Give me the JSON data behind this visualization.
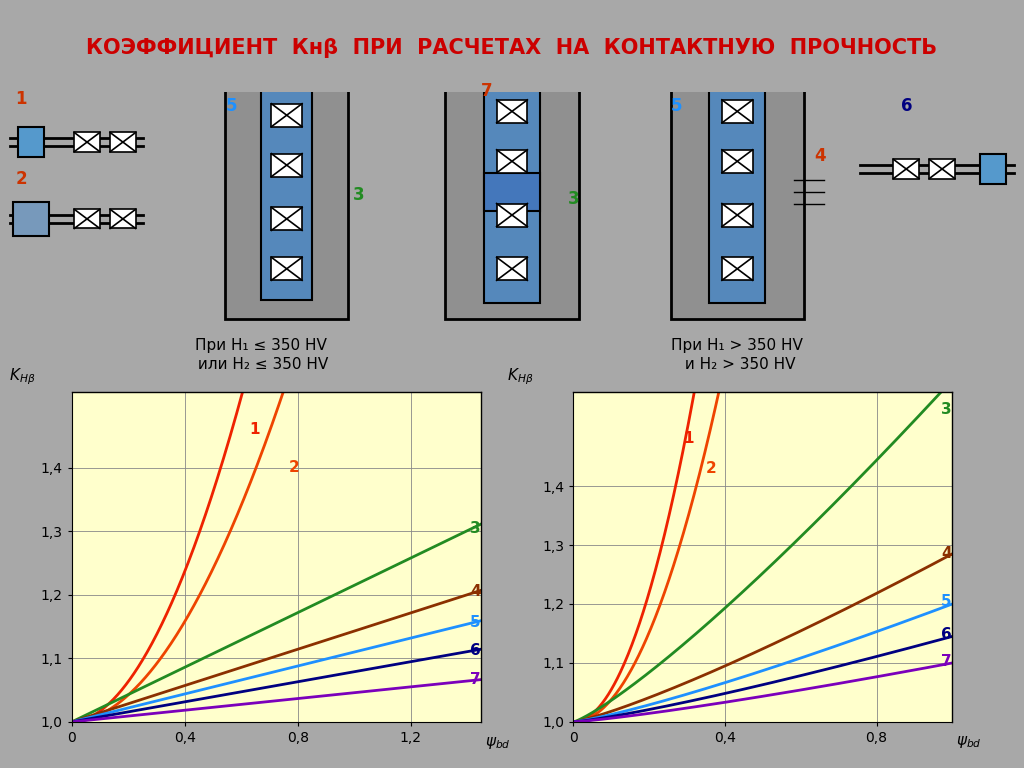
{
  "title": "КОЭФФИЦИЕНТ  Кнβ  ПРИ  РАСЧЕТАХ  НА  КОНТАКТНУЮ  ПРОЧНОСТЬ",
  "title_color": "#CC0000",
  "bg_color": "#A8A8A8",
  "white_bg": "#FFFFFF",
  "chart_bg": "#FFFFCC",
  "subtitle_left": "При H₁ ≤ 350 HV\n или H₂ ≤ 350 HV",
  "subtitle_right": "При H₁ > 350 HV\n и H₂ > 350 HV",
  "left_xtick_labels": [
    "0",
    "0,4",
    "0,8",
    "1,2"
  ],
  "right_xtick_labels": [
    "0",
    "0,4",
    "0,8"
  ],
  "ytick_labels": [
    "1,0",
    "1,1",
    "1,2",
    "1,3",
    "1,4"
  ],
  "left_xticks": [
    0,
    0.4,
    0.8,
    1.2
  ],
  "right_xticks": [
    0,
    0.4,
    0.8
  ],
  "yticks": [
    1.0,
    1.1,
    1.2,
    1.3,
    1.4
  ],
  "left_xlim": [
    0,
    1.45
  ],
  "left_ylim": [
    1.0,
    1.52
  ],
  "right_xlim": [
    0,
    1.0
  ],
  "right_ylim": [
    1.0,
    1.56
  ],
  "curve_colors": {
    "1": "#EE2200",
    "2": "#EE4400",
    "3": "#228B22",
    "4": "#8B3000",
    "5": "#1E90FF",
    "6": "#000080",
    "7": "#7B00BB"
  }
}
